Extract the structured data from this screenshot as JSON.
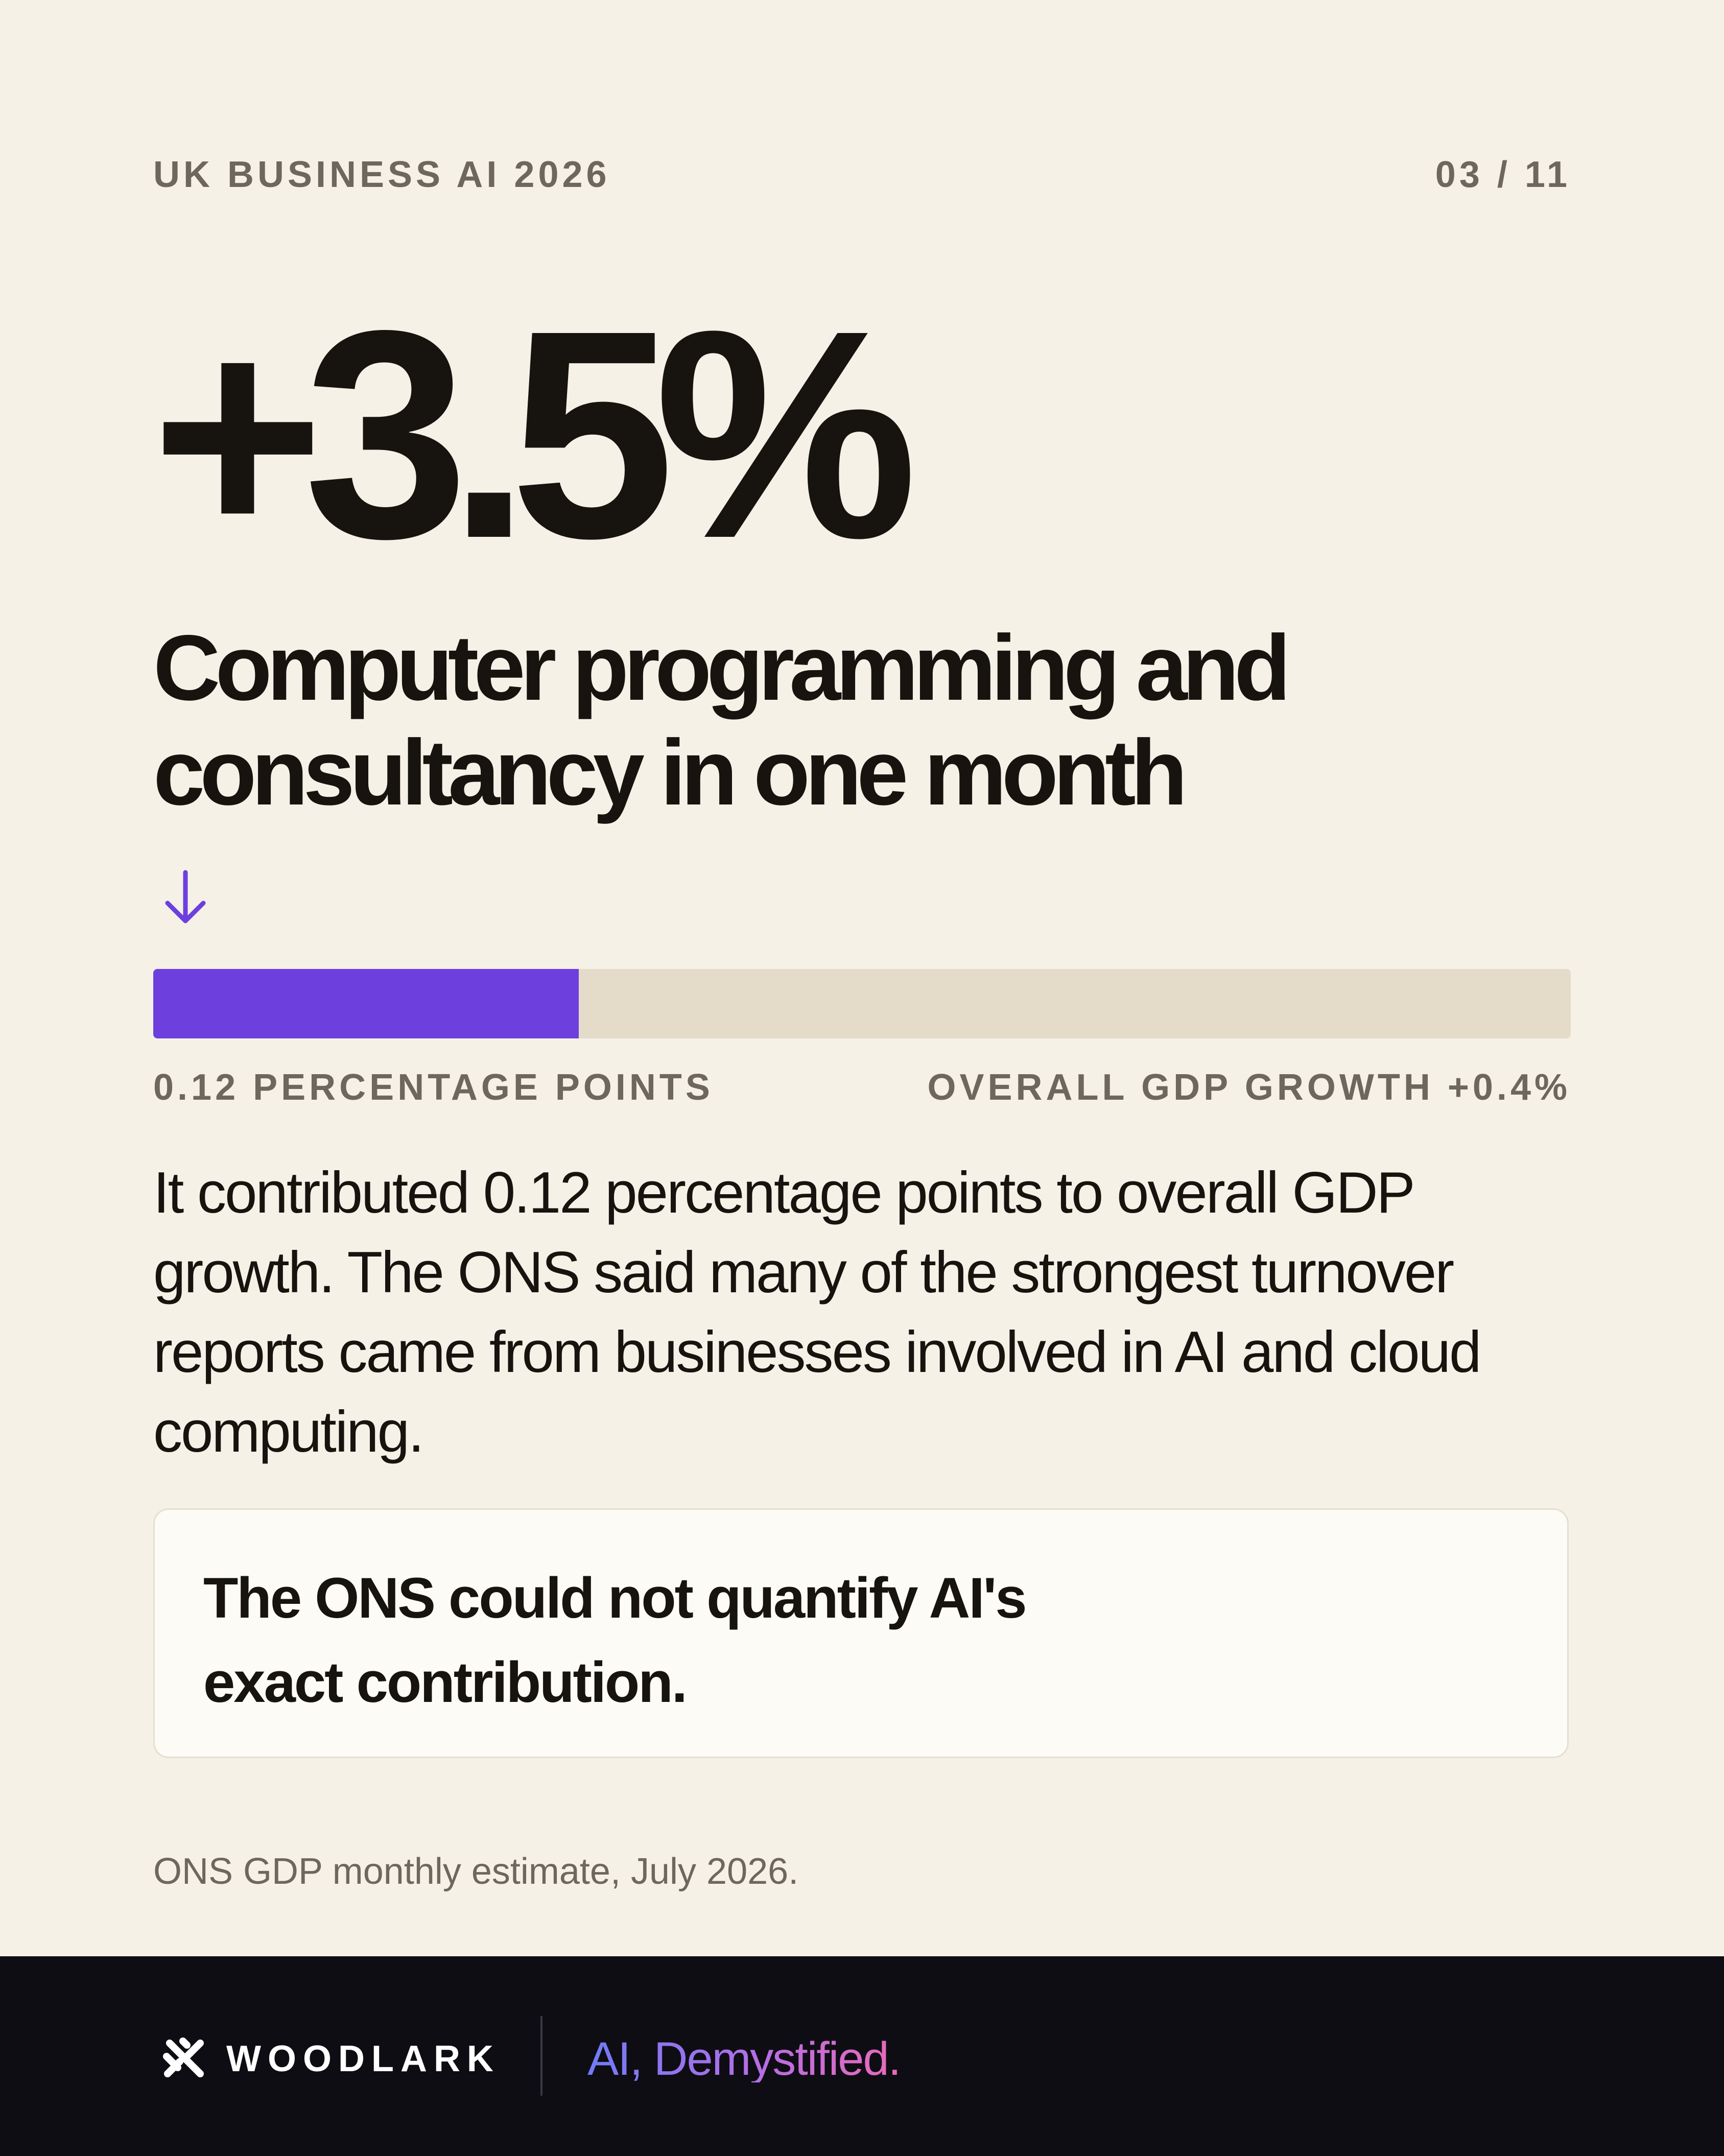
{
  "header": {
    "series_title": "UK BUSINESS AI 2026",
    "page_indicator": "03 / 11"
  },
  "stat": {
    "value": "+3.5%",
    "headline": "Computer programming and consultancy in one month"
  },
  "progress": {
    "fraction": 0.3,
    "left_label": "0.12 PERCENTAGE POINTS",
    "right_label": "OVERALL GDP GROWTH +0.4%",
    "fill_color": "#6d3fdd",
    "track_color": "#e4dcc8"
  },
  "body": {
    "paragraph": "It contributed 0.12 percentage points to overall GDP growth. The ONS said many of the strongest turnover reports came from businesses involved in AI and cloud computing."
  },
  "callout": {
    "text": "The ONS could not quantify AI's exact contribution."
  },
  "source": {
    "text": "ONS GDP monthly estimate, July 2026."
  },
  "footer": {
    "brand_name": "WOODLARK",
    "tagline": "AI, Demystified.",
    "logo_icon": "woodlark-logo-icon"
  },
  "colors": {
    "background": "#f5f1e7",
    "accent": "#6d3fdd",
    "footer_background": "#0f0d14"
  }
}
